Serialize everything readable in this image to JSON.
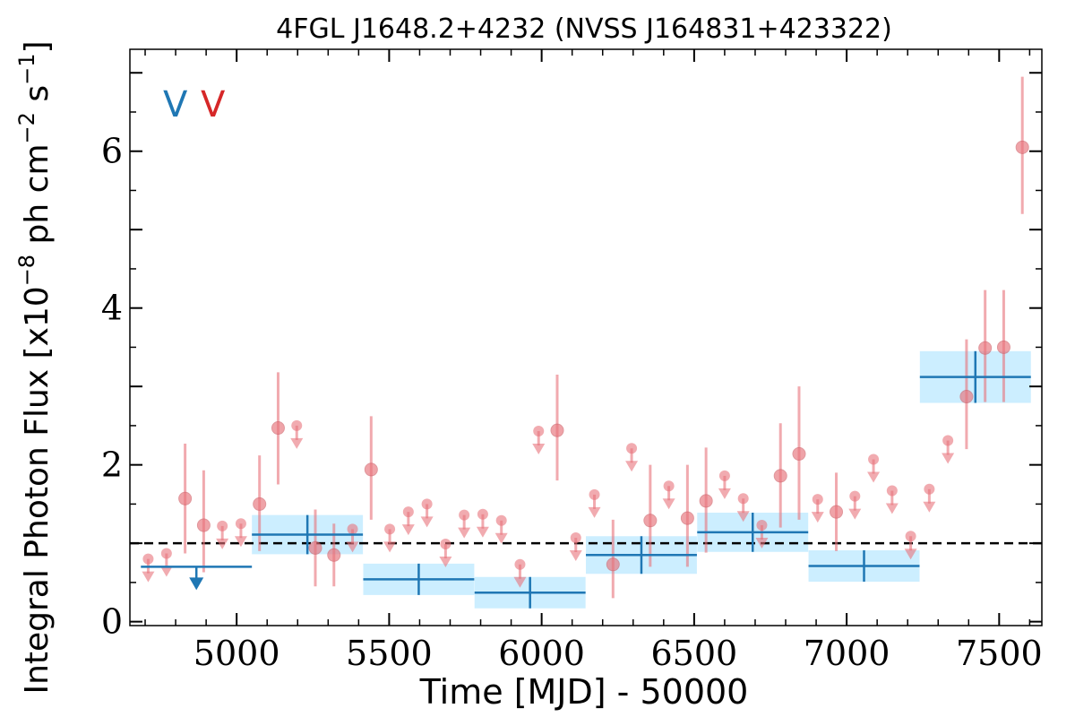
{
  "chart_data": {
    "type": "scatter",
    "title": "4FGL J1648.2+4232 (NVSS J164831+423322)",
    "xlabel": "Time [MJD] - 50000",
    "ylabel_main": "Integral Photon Flux [x10",
    "ylabel_exp1": "−8",
    "ylabel_mid": " ph cm",
    "ylabel_exp2": "−2",
    "ylabel_mid2": " s",
    "ylabel_exp3": "−1",
    "ylabel_end": "]",
    "xlim": [
      4650,
      7640
    ],
    "ylim": [
      -0.05,
      7.3
    ],
    "xticks": [
      5000,
      5500,
      6000,
      6500,
      7000,
      7500
    ],
    "xtick_labels": [
      "5000",
      "5500",
      "6000",
      "6500",
      "7000",
      "7500"
    ],
    "yticks": [
      0,
      2,
      4,
      6
    ],
    "ytick_labels": [
      "0",
      "2",
      "4",
      "6"
    ],
    "reference_line": 1.0,
    "colors": {
      "yearly": "#1f77b4",
      "yearly_band": "#cceeff",
      "monthly": "#e8737b"
    },
    "legend": [
      {
        "text": "V",
        "color": "#1f77b4"
      },
      {
        "text": "V",
        "color": "#d62728"
      }
    ],
    "yearly_bins": [
      {
        "x": 4868,
        "xerr": 182,
        "y": 0.7,
        "upper_limit": true
      },
      {
        "x": 5232,
        "xerr": 182,
        "y": 1.11,
        "yerr": 0.25
      },
      {
        "x": 5597,
        "xerr": 182,
        "y": 0.54,
        "yerr": 0.2
      },
      {
        "x": 5962,
        "xerr": 182,
        "y": 0.37,
        "yerr": 0.2
      },
      {
        "x": 6327,
        "xerr": 182,
        "y": 0.85,
        "yerr": 0.24
      },
      {
        "x": 6692,
        "xerr": 182,
        "y": 1.14,
        "yerr": 0.25
      },
      {
        "x": 7057,
        "xerr": 182,
        "y": 0.71,
        "yerr": 0.2
      },
      {
        "x": 7422,
        "xerr": 182,
        "y": 3.12,
        "yerr": 0.33
      }
    ],
    "monthly_points": [
      {
        "x": 4710,
        "y": 0.8,
        "upper_limit": true
      },
      {
        "x": 4770,
        "y": 0.87,
        "upper_limit": true
      },
      {
        "x": 4831,
        "y": 1.57,
        "low": 0.87,
        "high": 2.27
      },
      {
        "x": 4892,
        "y": 1.23,
        "low": 0.63,
        "high": 1.93
      },
      {
        "x": 4953,
        "y": 1.22,
        "upper_limit": true
      },
      {
        "x": 5014,
        "y": 1.25,
        "upper_limit": true
      },
      {
        "x": 5075,
        "y": 1.5,
        "low": 0.9,
        "high": 2.12
      },
      {
        "x": 5136,
        "y": 2.47,
        "low": 1.75,
        "high": 3.18
      },
      {
        "x": 5197,
        "y": 2.5,
        "upper_limit": true
      },
      {
        "x": 5258,
        "y": 0.94,
        "low": 0.45,
        "high": 1.43
      },
      {
        "x": 5319,
        "y": 0.85,
        "low": 0.45,
        "high": 1.25
      },
      {
        "x": 5380,
        "y": 1.18,
        "upper_limit": true
      },
      {
        "x": 5441,
        "y": 1.94,
        "low": 1.3,
        "high": 2.62
      },
      {
        "x": 5502,
        "y": 1.18,
        "upper_limit": true
      },
      {
        "x": 5563,
        "y": 1.4,
        "upper_limit": true
      },
      {
        "x": 5624,
        "y": 1.5,
        "upper_limit": true
      },
      {
        "x": 5685,
        "y": 0.99,
        "upper_limit": true
      },
      {
        "x": 5746,
        "y": 1.36,
        "upper_limit": true
      },
      {
        "x": 5807,
        "y": 1.37,
        "upper_limit": true
      },
      {
        "x": 5868,
        "y": 1.29,
        "upper_limit": true
      },
      {
        "x": 5929,
        "y": 0.73,
        "upper_limit": true
      },
      {
        "x": 5990,
        "y": 2.43,
        "upper_limit": true
      },
      {
        "x": 6051,
        "y": 2.44,
        "low": 1.8,
        "high": 3.15
      },
      {
        "x": 6112,
        "y": 1.07,
        "upper_limit": true
      },
      {
        "x": 6173,
        "y": 1.62,
        "upper_limit": true
      },
      {
        "x": 6234,
        "y": 0.73,
        "low": 0.3,
        "high": 1.3
      },
      {
        "x": 6295,
        "y": 2.21,
        "upper_limit": true
      },
      {
        "x": 6356,
        "y": 1.29,
        "low": 0.7,
        "high": 2.0
      },
      {
        "x": 6417,
        "y": 1.73,
        "upper_limit": true
      },
      {
        "x": 6478,
        "y": 1.32,
        "low": 0.7,
        "high": 2.0
      },
      {
        "x": 6539,
        "y": 1.54,
        "low": 0.88,
        "high": 2.22
      },
      {
        "x": 6600,
        "y": 1.86,
        "upper_limit": true
      },
      {
        "x": 6661,
        "y": 1.57,
        "upper_limit": true
      },
      {
        "x": 6722,
        "y": 1.23,
        "upper_limit": true
      },
      {
        "x": 6783,
        "y": 1.86,
        "low": 1.2,
        "high": 2.53
      },
      {
        "x": 6844,
        "y": 2.14,
        "low": 1.3,
        "high": 3.0
      },
      {
        "x": 6905,
        "y": 1.56,
        "upper_limit": true
      },
      {
        "x": 6966,
        "y": 1.4,
        "low": 0.9,
        "high": 1.9
      },
      {
        "x": 7027,
        "y": 1.6,
        "upper_limit": true
      },
      {
        "x": 7088,
        "y": 2.07,
        "upper_limit": true
      },
      {
        "x": 7149,
        "y": 1.67,
        "upper_limit": true
      },
      {
        "x": 7210,
        "y": 1.09,
        "upper_limit": true
      },
      {
        "x": 7271,
        "y": 1.69,
        "upper_limit": true
      },
      {
        "x": 7332,
        "y": 2.31,
        "upper_limit": true
      },
      {
        "x": 7393,
        "y": 2.87,
        "low": 2.2,
        "high": 3.6
      },
      {
        "x": 7454,
        "y": 3.49,
        "low": 2.8,
        "high": 4.23
      },
      {
        "x": 7515,
        "y": 3.5,
        "low": 2.8,
        "high": 4.23
      },
      {
        "x": 7576,
        "y": 6.05,
        "low": 5.2,
        "high": 6.95
      }
    ]
  }
}
